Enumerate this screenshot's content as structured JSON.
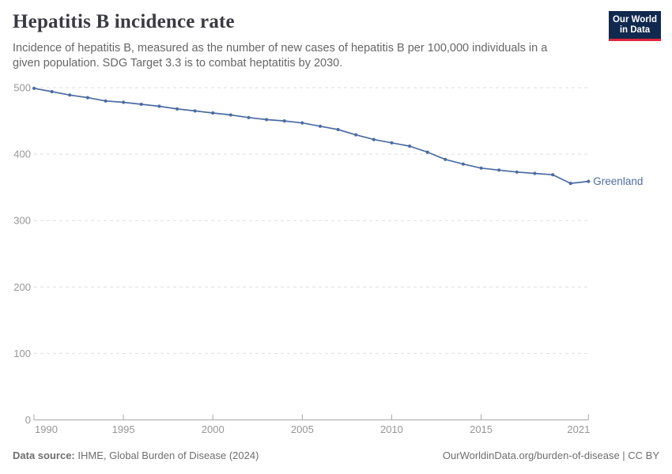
{
  "header": {
    "title": "Hepatitis B incidence rate",
    "subtitle": "Incidence of hepatitis B, measured as the number of new cases of hepatitis B per 100,000 individuals in a given population. SDG Target 3.3 is to combat heptatitis by 2030.",
    "logo": {
      "line1": "Our World",
      "line2": "in Data"
    }
  },
  "chart_data": {
    "type": "line",
    "title": "Hepatitis B incidence rate",
    "xlabel": "",
    "ylabel": "",
    "x": [
      1990,
      1991,
      1992,
      1993,
      1994,
      1995,
      1996,
      1997,
      1998,
      1999,
      2000,
      2001,
      2002,
      2003,
      2004,
      2005,
      2006,
      2007,
      2008,
      2009,
      2010,
      2011,
      2012,
      2013,
      2014,
      2015,
      2016,
      2017,
      2018,
      2019,
      2020,
      2021
    ],
    "series": [
      {
        "name": "Greenland",
        "values": [
          499,
          494,
          489,
          485,
          480,
          478,
          475,
          472,
          468,
          465,
          462,
          459,
          455,
          452,
          450,
          447,
          442,
          437,
          429,
          422,
          417,
          412,
          403,
          392,
          385,
          379,
          376,
          373,
          371,
          369,
          356,
          359
        ]
      }
    ],
    "ylim": [
      0,
      500
    ],
    "yticks": [
      0,
      100,
      200,
      300,
      400,
      500
    ],
    "xticks": [
      1990,
      1995,
      2000,
      2005,
      2010,
      2015,
      2021
    ],
    "grid": "horizontal-dashed",
    "legend": "end-of-line-label",
    "markers": true
  },
  "colors": {
    "line": "#4C6CA4",
    "entity_label": "#4C6CA4",
    "title": "#3A3A43",
    "subtitle": "#666666",
    "axis_label": "#969696",
    "gridline": "#DEDEDE",
    "axis_line": "#A8A8A8",
    "logo_bg": "#12294F",
    "logo_red": "#E2243C",
    "footer_text": "#6E6E6E"
  },
  "footer": {
    "source_label": "Data source:",
    "source_text": " IHME, Global Burden of Disease (2024)",
    "link_text": "OurWorldinData.org/burden-of-disease | CC BY"
  }
}
